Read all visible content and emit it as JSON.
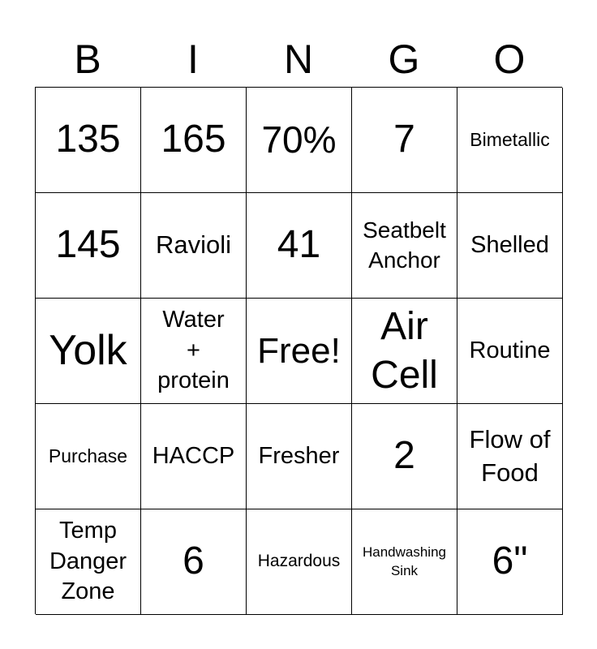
{
  "header": [
    "B",
    "I",
    "N",
    "G",
    "O"
  ],
  "cells": [
    [
      "135",
      "165",
      "70%",
      "7",
      "Bimetallic"
    ],
    [
      "145",
      "Ravioli",
      "41",
      "Seatbelt Anchor",
      "Shelled"
    ],
    [
      "Yolk",
      "Water + protein",
      "Free!",
      "Air Cell",
      "Routine"
    ],
    [
      "Purchase",
      "HACCP",
      "Fresher",
      "2",
      "Flow of Food"
    ],
    [
      "Temp Danger Zone",
      "6",
      "Hazardous",
      "Handwashing Sink",
      "6\""
    ]
  ]
}
